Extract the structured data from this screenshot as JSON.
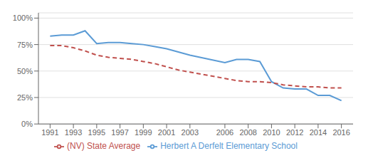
{
  "chart_data": {
    "type": "line",
    "x": [
      1991,
      1992,
      1993,
      1994,
      1995,
      1996,
      1997,
      1998,
      1999,
      2000,
      2001,
      2002,
      2003,
      2006,
      2007,
      2008,
      2009,
      2010,
      2011,
      2012,
      2013,
      2014,
      2015,
      2016
    ],
    "series": [
      {
        "name": "Herbert A Derfelt Elementary School",
        "color": "#5b9bd5",
        "line_style": "solid",
        "values": [
          83,
          84,
          84,
          88,
          76,
          77,
          77,
          76,
          75,
          73,
          71,
          68,
          65,
          58,
          61,
          61,
          59,
          40,
          34,
          33,
          33,
          27,
          27,
          22
        ]
      },
      {
        "name": "(NV) State Average",
        "color": "#c0504d",
        "line_style": "dashed",
        "values": [
          74,
          74,
          72,
          69,
          65,
          63,
          62,
          61,
          59,
          57,
          54,
          51,
          49,
          43,
          41,
          40,
          40,
          39,
          37,
          36,
          35,
          35,
          34,
          34
        ]
      }
    ],
    "xlim": [
      1990,
      2017
    ],
    "xticks": [
      1991,
      1993,
      1995,
      1997,
      1999,
      2001,
      2003,
      2006,
      2008,
      2010,
      2012,
      2014,
      2016
    ],
    "ylim": [
      0,
      105
    ],
    "yticks": [
      {
        "value": 0,
        "label": "0%"
      },
      {
        "value": 25,
        "label": "25%"
      },
      {
        "value": 50,
        "label": "50%"
      },
      {
        "value": 75,
        "label": "75%"
      },
      {
        "value": 100,
        "label": "100%"
      }
    ],
    "grid": true,
    "legend": "bottom"
  }
}
